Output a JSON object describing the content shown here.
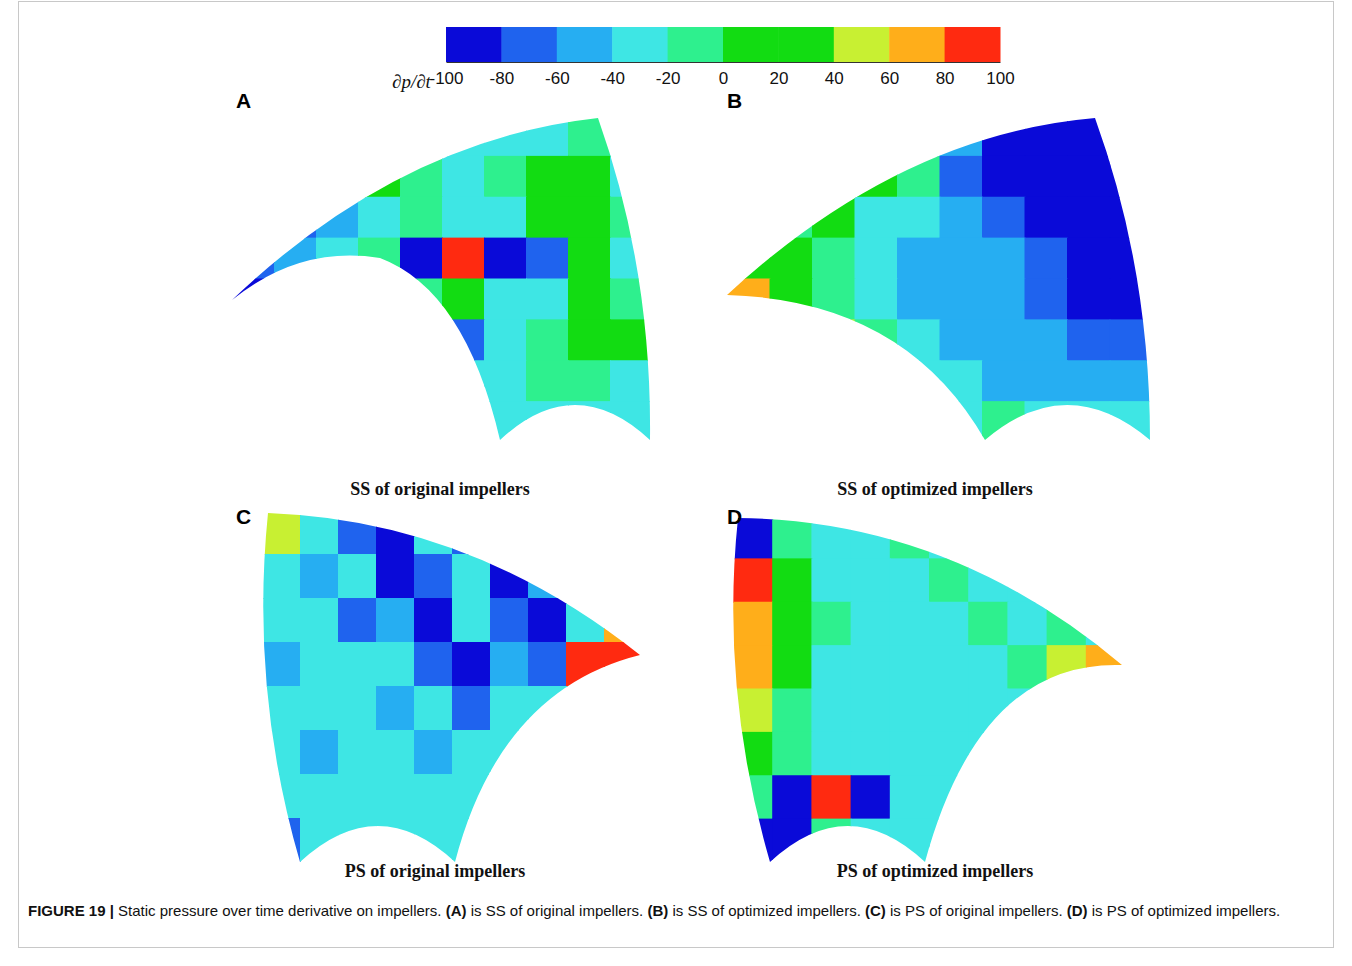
{
  "chart_data": {
    "type": "heatmap",
    "caption": "FIGURE 19 | Static pressure over time derivative on impellers. (A) is SS of original impellers. (B) is SS of optimized impellers. (C) is PS of original impellers. (D) is PS of optimized impellers.",
    "color_bar": {
      "title": "∂p/∂t",
      "range": [
        -100,
        100
      ],
      "ticks": [
        -100,
        -80,
        -60,
        -40,
        -20,
        0,
        20,
        40,
        60,
        80,
        100
      ],
      "colors": [
        "#0a0ad8",
        "#1f63ee",
        "#26aef2",
        "#3ee6e4",
        "#2ef08e",
        "#12dc12",
        "#12dc12",
        "#c8f032",
        "#ffae1a",
        "#ff2a10"
      ]
    },
    "panels": [
      {
        "label": "A",
        "title": "SS of original impellers",
        "values": [
          [
            -30,
            -30,
            -30,
            -30,
            -30,
            -30,
            -30,
            -30,
            -20,
            -30
          ],
          [
            -30,
            -30,
            -50,
            10,
            -10,
            -30,
            -10,
            10,
            0,
            -30
          ],
          [
            -30,
            -70,
            -50,
            -30,
            -10,
            -30,
            -30,
            0,
            10,
            -10
          ],
          [
            -70,
            -50,
            -30,
            -10,
            -90,
            90,
            -90,
            -75,
            10,
            -30
          ],
          [
            -90,
            -30,
            -30,
            -90,
            -10,
            10,
            -30,
            -30,
            10,
            -10
          ],
          [
            -30,
            -30,
            -30,
            -30,
            -30,
            -70,
            -30,
            -10,
            10,
            0
          ],
          [
            -30,
            -30,
            -30,
            -30,
            -30,
            -30,
            -30,
            -10,
            -10,
            -30
          ],
          [
            -30,
            -30,
            -30,
            -30,
            -30,
            -30,
            -30,
            -30,
            -30,
            -30
          ]
        ]
      },
      {
        "label": "B",
        "title": "SS of optimized impellers",
        "values": [
          [
            -30,
            -30,
            -30,
            -30,
            -30,
            -50,
            -90,
            -100,
            -100,
            -100
          ],
          [
            -30,
            -30,
            -30,
            0,
            -10,
            -70,
            -90,
            -100,
            -100,
            -100
          ],
          [
            -30,
            -10,
            0,
            -30,
            -40,
            -60,
            -80,
            -100,
            -100,
            -100
          ],
          [
            20,
            10,
            -10,
            -40,
            -45,
            -50,
            -60,
            -80,
            -100,
            -100
          ],
          [
            60,
            30,
            -10,
            -40,
            -45,
            -45,
            -55,
            -75,
            -90,
            -95
          ],
          [
            -30,
            -30,
            40,
            -20,
            -40,
            -45,
            -50,
            -60,
            -70,
            -80
          ],
          [
            -30,
            -30,
            -30,
            -30,
            -30,
            -40,
            -45,
            -50,
            -60,
            -60
          ],
          [
            -30,
            -30,
            -30,
            -30,
            -30,
            -30,
            -10,
            -40,
            -40,
            -40
          ]
        ]
      },
      {
        "label": "C",
        "title": "PS of original impellers",
        "values": [
          [
            40,
            -30,
            -70,
            -90,
            -30,
            -70,
            -30,
            -30,
            -30,
            -30
          ],
          [
            -30,
            -50,
            -30,
            -90,
            -70,
            -30,
            -90,
            -50,
            -30,
            -30
          ],
          [
            -30,
            -30,
            -70,
            -50,
            -90,
            -30,
            -70,
            -90,
            -30,
            60
          ],
          [
            -50,
            -30,
            -30,
            -30,
            -70,
            -90,
            -50,
            -70,
            90,
            100
          ],
          [
            -30,
            -30,
            -30,
            -50,
            -30,
            -70,
            -30,
            -30,
            -30,
            -30
          ],
          [
            -30,
            -50,
            -30,
            -30,
            -50,
            -30,
            -30,
            -30,
            -30,
            -30
          ],
          [
            -30,
            -30,
            -30,
            -30,
            -30,
            -30,
            -30,
            -30,
            -30,
            -30
          ],
          [
            -70,
            -30,
            -30,
            -30,
            -30,
            -30,
            -30,
            -30,
            -30,
            -30
          ]
        ]
      },
      {
        "label": "D",
        "title": "PS of optimized impellers",
        "values": [
          [
            -90,
            -10,
            -30,
            -30,
            -10,
            -30,
            -30,
            -30,
            -30,
            -30
          ],
          [
            80,
            0,
            -30,
            -30,
            -30,
            -10,
            -30,
            -30,
            -30,
            -30
          ],
          [
            70,
            10,
            -10,
            -30,
            -30,
            -30,
            -10,
            -30,
            -20,
            -30
          ],
          [
            60,
            0,
            -30,
            -30,
            -30,
            -30,
            -30,
            -20,
            40,
            60
          ],
          [
            40,
            -10,
            -30,
            -30,
            -30,
            -30,
            -30,
            -30,
            -30,
            -30
          ],
          [
            10,
            -10,
            -30,
            -30,
            -30,
            -30,
            -30,
            -30,
            -30,
            -30
          ],
          [
            -10,
            -90,
            90,
            -90,
            -30,
            -30,
            -30,
            -30,
            -30,
            -30
          ],
          [
            -100,
            -90,
            -10,
            -30,
            -30,
            -30,
            -30,
            -30,
            -30,
            -30
          ]
        ]
      }
    ]
  }
}
